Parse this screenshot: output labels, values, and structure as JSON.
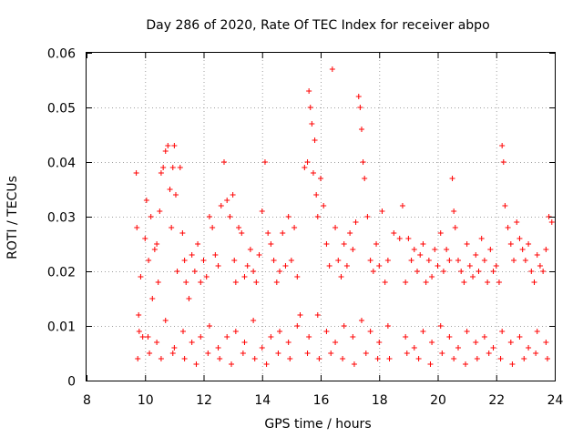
{
  "chart_data": {
    "type": "scatter",
    "title": "Day 286 of 2020, Rate Of TEC Index for receiver abpo",
    "xlabel": "GPS time / hours",
    "ylabel": "ROTI / TECUs",
    "xlim": [
      8,
      24
    ],
    "ylim": [
      0,
      0.06
    ],
    "grid": true,
    "marker": "+",
    "series_color": "#ff0000",
    "x_ticks": [
      8,
      10,
      12,
      14,
      16,
      18,
      20,
      22,
      24
    ],
    "x_tick_labels": [
      "8",
      "10",
      "12",
      "14",
      "16",
      "18",
      "20",
      "22",
      "24"
    ],
    "y_ticks": [
      0,
      0.01,
      0.02,
      0.03,
      0.04,
      0.05,
      0.06
    ],
    "y_tick_labels": [
      "0",
      "0.01",
      "0.02",
      "0.03",
      "0.04",
      "0.05",
      "0.06"
    ],
    "series": [
      {
        "name": "ROTI",
        "x": [
          9.7,
          9.72,
          9.78,
          9.85,
          9.92,
          10.0,
          10.05,
          10.12,
          10.2,
          10.25,
          10.33,
          10.4,
          10.45,
          10.5,
          10.55,
          10.62,
          10.7,
          10.78,
          10.85,
          10.9,
          10.95,
          11.0,
          11.05,
          11.1,
          11.2,
          11.28,
          11.35,
          11.4,
          11.5,
          11.6,
          11.7,
          11.8,
          11.9,
          12.0,
          12.1,
          12.2,
          12.3,
          12.4,
          12.5,
          12.6,
          12.7,
          12.8,
          12.9,
          13.0,
          13.05,
          13.1,
          13.2,
          13.3,
          13.4,
          13.5,
          13.6,
          13.7,
          13.8,
          13.9,
          14.0,
          14.1,
          14.2,
          14.3,
          14.4,
          14.5,
          14.6,
          14.7,
          14.8,
          14.9,
          15.0,
          15.1,
          15.2,
          15.3,
          15.45,
          15.55,
          15.6,
          15.65,
          15.7,
          15.75,
          15.8,
          15.85,
          15.9,
          16.0,
          16.1,
          16.2,
          16.3,
          16.4,
          16.5,
          16.6,
          16.7,
          16.8,
          16.9,
          17.0,
          17.1,
          17.2,
          17.3,
          17.35,
          17.4,
          17.45,
          17.5,
          17.6,
          17.7,
          17.8,
          17.9,
          18.0,
          18.1,
          18.2,
          18.3,
          18.5,
          18.7,
          18.8,
          18.9,
          19.0,
          19.1,
          19.2,
          19.3,
          19.4,
          19.5,
          19.6,
          19.7,
          19.8,
          19.9,
          20.0,
          20.1,
          20.2,
          20.3,
          20.4,
          20.5,
          20.55,
          20.6,
          20.7,
          20.8,
          20.9,
          21.0,
          21.1,
          21.2,
          21.3,
          21.4,
          21.5,
          21.6,
          21.7,
          21.8,
          21.9,
          22.0,
          22.1,
          22.2,
          22.25,
          22.3,
          22.4,
          22.5,
          22.6,
          22.7,
          22.8,
          22.9,
          23.0,
          23.1,
          23.2,
          23.3,
          23.4,
          23.5,
          23.6,
          23.7,
          23.8,
          23.9,
          9.8,
          10.1,
          10.4,
          10.7,
          11.0,
          11.3,
          11.6,
          11.9,
          12.2,
          12.5,
          12.8,
          13.1,
          13.4,
          13.7,
          14.0,
          14.3,
          14.6,
          14.9,
          15.2,
          15.6,
          15.9,
          16.2,
          16.5,
          16.8,
          17.1,
          17.4,
          17.7,
          18.0,
          18.3,
          18.9,
          19.2,
          19.5,
          19.8,
          20.1,
          20.4,
          20.7,
          21.0,
          21.3,
          21.6,
          21.9,
          22.2,
          22.5,
          22.8,
          23.1,
          23.4,
          23.7,
          9.75,
          10.15,
          10.55,
          10.95,
          11.35,
          11.75,
          12.15,
          12.55,
          12.95,
          13.35,
          13.75,
          14.15,
          14.55,
          14.95,
          15.55,
          15.95,
          16.35,
          16.75,
          17.15,
          17.55,
          17.95,
          18.35,
          18.95,
          19.35,
          19.75,
          20.15,
          20.55,
          20.95,
          21.35,
          21.75,
          22.15,
          22.55,
          22.95,
          23.35,
          23.75
        ],
        "y": [
          0.038,
          0.028,
          0.012,
          0.019,
          0.008,
          0.026,
          0.033,
          0.022,
          0.03,
          0.015,
          0.024,
          0.025,
          0.018,
          0.031,
          0.038,
          0.039,
          0.042,
          0.043,
          0.035,
          0.028,
          0.039,
          0.043,
          0.034,
          0.02,
          0.039,
          0.027,
          0.022,
          0.018,
          0.015,
          0.023,
          0.02,
          0.025,
          0.018,
          0.022,
          0.019,
          0.03,
          0.028,
          0.023,
          0.021,
          0.032,
          0.04,
          0.033,
          0.03,
          0.034,
          0.022,
          0.018,
          0.028,
          0.027,
          0.019,
          0.021,
          0.024,
          0.02,
          0.018,
          0.023,
          0.031,
          0.04,
          0.027,
          0.025,
          0.022,
          0.018,
          0.02,
          0.027,
          0.021,
          0.03,
          0.022,
          0.028,
          0.019,
          0.012,
          0.039,
          0.04,
          0.053,
          0.05,
          0.047,
          0.038,
          0.044,
          0.034,
          0.03,
          0.037,
          0.032,
          0.025,
          0.021,
          0.057,
          0.028,
          0.022,
          0.019,
          0.025,
          0.021,
          0.027,
          0.024,
          0.029,
          0.052,
          0.05,
          0.046,
          0.04,
          0.037,
          0.03,
          0.022,
          0.02,
          0.025,
          0.021,
          0.031,
          0.018,
          0.022,
          0.027,
          0.026,
          0.032,
          0.018,
          0.026,
          0.022,
          0.024,
          0.02,
          0.023,
          0.025,
          0.018,
          0.022,
          0.019,
          0.024,
          0.021,
          0.027,
          0.02,
          0.024,
          0.022,
          0.037,
          0.031,
          0.028,
          0.022,
          0.02,
          0.018,
          0.025,
          0.021,
          0.019,
          0.023,
          0.02,
          0.026,
          0.022,
          0.018,
          0.024,
          0.02,
          0.021,
          0.018,
          0.043,
          0.04,
          0.032,
          0.028,
          0.025,
          0.022,
          0.029,
          0.026,
          0.024,
          0.022,
          0.025,
          0.02,
          0.018,
          0.023,
          0.021,
          0.02,
          0.024,
          0.03,
          0.029,
          0.009,
          0.008,
          0.007,
          0.011,
          0.006,
          0.009,
          0.007,
          0.008,
          0.01,
          0.006,
          0.008,
          0.009,
          0.007,
          0.011,
          0.006,
          0.008,
          0.009,
          0.007,
          0.01,
          0.008,
          0.012,
          0.009,
          0.007,
          0.01,
          0.008,
          0.011,
          0.009,
          0.007,
          0.01,
          0.008,
          0.006,
          0.009,
          0.007,
          0.01,
          0.008,
          0.006,
          0.009,
          0.007,
          0.008,
          0.006,
          0.009,
          0.007,
          0.008,
          0.006,
          0.009,
          0.007,
          0.004,
          0.005,
          0.004,
          0.005,
          0.004,
          0.003,
          0.005,
          0.004,
          0.003,
          0.005,
          0.004,
          0.003,
          0.005,
          0.004,
          0.005,
          0.004,
          0.005,
          0.004,
          0.003,
          0.005,
          0.004,
          0.004,
          0.005,
          0.004,
          0.003,
          0.005,
          0.004,
          0.003,
          0.004,
          0.005,
          0.004,
          0.003,
          0.004,
          0.005,
          0.004
        ]
      }
    ]
  }
}
